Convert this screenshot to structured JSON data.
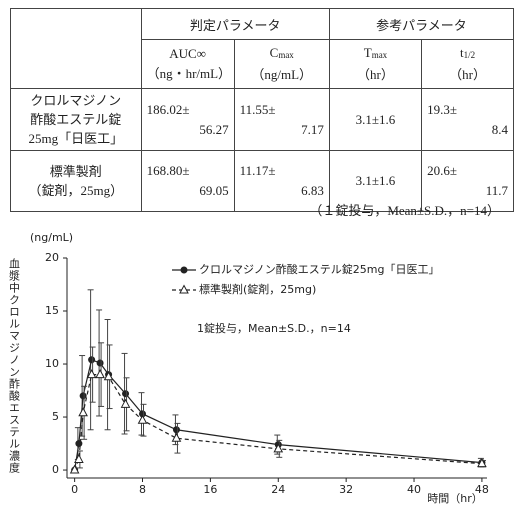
{
  "table": {
    "groups": [
      "判定パラメータ",
      "参考パラメータ"
    ],
    "columns": [
      {
        "symbol": "AUC∞",
        "unit": "（ng・hr/mL）"
      },
      {
        "symbol": "C",
        "sub": "max",
        "unit": "（ng/mL）"
      },
      {
        "symbol": "T",
        "sub": "max",
        "unit": "（hr）"
      },
      {
        "symbol": "t",
        "sub": "1/2",
        "unit": "（hr）"
      }
    ],
    "rows": [
      {
        "label": [
          "クロルマジノン",
          "酢酸エステル錠",
          "25mg「日医工」"
        ],
        "cells": [
          [
            "186.02±",
            "56.27"
          ],
          [
            "11.55±",
            "7.17"
          ],
          [
            "3.1±1.6"
          ],
          [
            "19.3±",
            "8.4"
          ]
        ]
      },
      {
        "label": [
          "標準製剤",
          "（錠剤，25mg）"
        ],
        "cells": [
          [
            "168.80±",
            "69.05"
          ],
          [
            "11.17±",
            "6.83"
          ],
          [
            "3.1±1.6"
          ],
          [
            "20.6±",
            "11.7"
          ]
        ]
      }
    ],
    "note": "（１錠投与，Mean±S.D.，n=14）"
  },
  "chart_data": {
    "type": "line",
    "y_unit": "(ng/mL)",
    "y_label": "血漿中クロルマジノン酢酸エステル濃度",
    "x_label": "時間（hr）",
    "annotation": "1錠投与，Mean±S.D.，n=14",
    "x": [
      0,
      0.5,
      1,
      2,
      3,
      4,
      6,
      8,
      12,
      24,
      48
    ],
    "xlim": [
      -0.9,
      48.6
    ],
    "xticks": [
      0,
      8,
      16,
      24,
      32,
      40,
      48
    ],
    "ylim": [
      -0.75,
      20
    ],
    "yticks": [
      0,
      5,
      10,
      15,
      20
    ],
    "series": [
      {
        "name": "クロルマジノン酢酸エステル錠25mg「日医工」",
        "color": "#222222",
        "marker": "circle",
        "dash": false,
        "values": [
          0,
          2.5,
          7.0,
          10.4,
          10.1,
          9.0,
          7.2,
          5.3,
          3.8,
          2.4,
          0.7
        ],
        "errors": [
          0,
          1.5,
          3.8,
          6.6,
          5.0,
          5.2,
          3.8,
          2.0,
          1.4,
          0.9,
          0.4
        ]
      },
      {
        "name": "標準製剤(錠剤，25mg)",
        "color": "#222222",
        "marker": "triangle",
        "dash": true,
        "values": [
          0,
          1.0,
          5.4,
          9.0,
          9.0,
          8.8,
          6.2,
          4.7,
          3.0,
          2.0,
          0.6
        ],
        "errors": [
          0,
          0.8,
          2.5,
          2.6,
          3.0,
          3.0,
          2.5,
          1.5,
          1.4,
          0.8,
          0.3
        ]
      }
    ]
  }
}
